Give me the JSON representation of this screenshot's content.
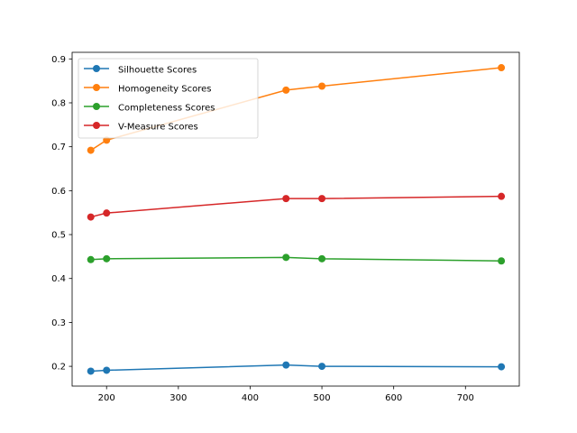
{
  "chart_data": {
    "type": "line",
    "title": "",
    "xlabel": "",
    "ylabel": "",
    "xlim": [
      152,
      775
    ],
    "ylim": [
      0.155,
      0.915
    ],
    "xticks": [
      200,
      300,
      400,
      500,
      600,
      700
    ],
    "yticks": [
      0.2,
      0.3,
      0.4,
      0.5,
      0.6,
      0.7,
      0.8,
      0.9
    ],
    "grid": false,
    "legend_position": "top-left",
    "x": [
      178,
      200,
      450,
      500,
      750
    ],
    "series": [
      {
        "name": "Silhouette Scores",
        "color": "#1f77b4",
        "values": [
          0.189,
          0.191,
          0.203,
          0.2,
          0.199
        ]
      },
      {
        "name": "Homogeneity Scores",
        "color": "#ff7f0e",
        "values": [
          0.692,
          0.715,
          0.829,
          0.838,
          0.88
        ]
      },
      {
        "name": "Completeness Scores",
        "color": "#2ca02c",
        "values": [
          0.443,
          0.445,
          0.448,
          0.445,
          0.44
        ]
      },
      {
        "name": "V-Measure Scores",
        "color": "#d62728",
        "values": [
          0.54,
          0.549,
          0.582,
          0.582,
          0.587
        ]
      }
    ]
  }
}
